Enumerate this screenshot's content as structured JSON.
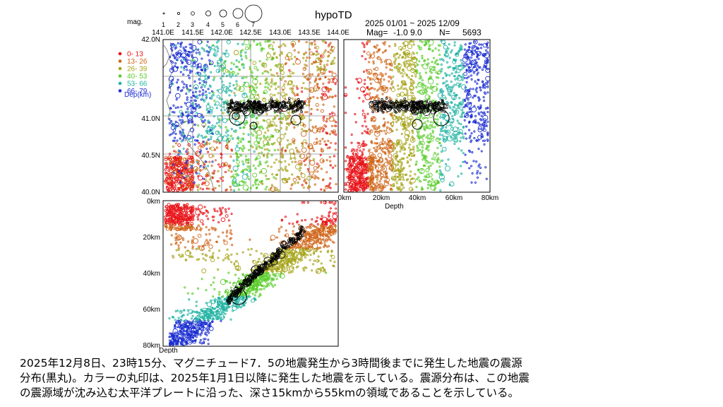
{
  "header": {
    "program": "hypoTD",
    "period": "2025 01/01 ~ 2025 12/09",
    "mag_label": "Mag=",
    "mag_range": "-1.0  9.0",
    "n_label": "N=",
    "count": "5693"
  },
  "mag_legend": {
    "title": "mag.",
    "values": [
      "1",
      "2",
      "3",
      "4",
      "5",
      "6",
      "7"
    ]
  },
  "depth_legend": {
    "title": "Dep(km)",
    "items": [
      {
        "label": "0- 13",
        "color": "#e8161b"
      },
      {
        "label": "13- 26",
        "color": "#d0661a"
      },
      {
        "label": "26- 39",
        "color": "#a6a51c"
      },
      {
        "label": "40- 53",
        "color": "#5ccd2d"
      },
      {
        "label": "53- 66",
        "color": "#22b3a3"
      },
      {
        "label": "66- 79",
        "color": "#1c2fd1"
      }
    ]
  },
  "map_panel": {
    "lon_ticks": [
      "141.0E",
      "141.5E",
      "142.0E",
      "142.5E",
      "143.0E",
      "143.5E",
      "144.0E"
    ],
    "lat_ticks": [
      "42.0N",
      "41.0N",
      "40.5N",
      "40.0N"
    ],
    "xlim": [
      141.0,
      144.0
    ],
    "ylim": [
      40.0,
      42.0
    ]
  },
  "lat_depth_panel": {
    "depth_ticks": [
      "0km",
      "20km",
      "40km",
      "60km",
      "80km"
    ],
    "axis_label": "Depth"
  },
  "lon_depth_panel": {
    "depth_ticks": [
      "0km",
      "20km",
      "40km",
      "60km",
      "80km"
    ],
    "axis_label": "Depth"
  },
  "caption": {
    "line1": "2025年12月8日、23時15分、マグニチュード7．5の地震発生から3時間後までに発生した地震の震源",
    "line2": "分布(黒丸)。カラーの丸印は、2025年1月1日以降に発生した地震を示している。震源分布は、この地震",
    "line3": "の震源域が沈み込む太平洋プレートに沿った、深さ15kmから55kmの領域であることを示している。"
  }
}
